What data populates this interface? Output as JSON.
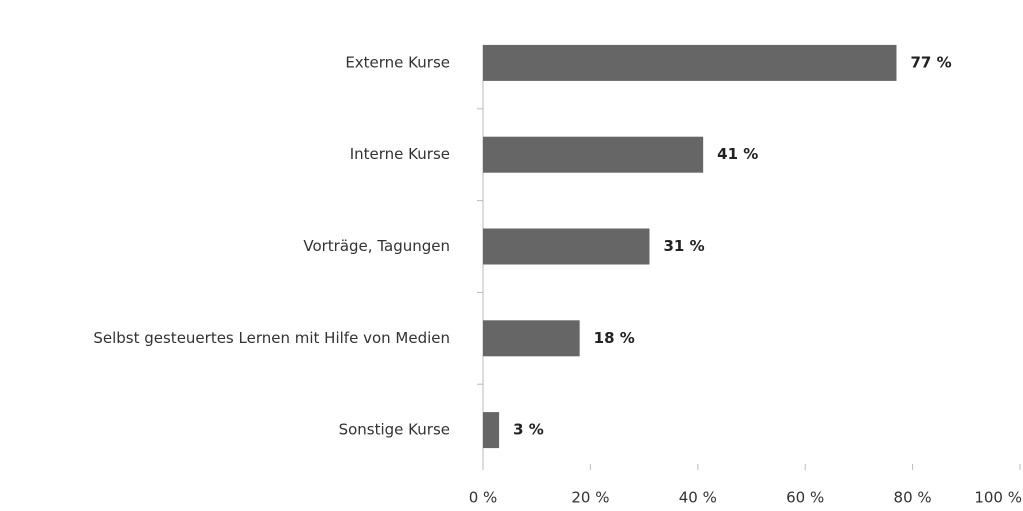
{
  "chart_data": {
    "type": "bar",
    "orientation": "horizontal",
    "categories": [
      "Externe Kurse",
      "Interne Kurse",
      "Vorträge, Tagungen",
      "Selbst gesteuertes Lernen mit Hilfe von Medien",
      "Sonstige Kurse"
    ],
    "values": [
      77,
      41,
      31,
      18,
      3
    ],
    "value_labels": [
      "77 %",
      "41 %",
      "31 %",
      "18 %",
      "3 %"
    ],
    "color": "#666666",
    "xlim": [
      0,
      100
    ],
    "xticks": [
      {
        "value": 0,
        "label": "0 %"
      },
      {
        "value": 20,
        "label": "20 %"
      },
      {
        "value": 40,
        "label": "40 %"
      },
      {
        "value": 60,
        "label": "60 %"
      },
      {
        "value": 80,
        "label": "80 %"
      },
      {
        "value": 100,
        "label": "100 %"
      }
    ]
  }
}
